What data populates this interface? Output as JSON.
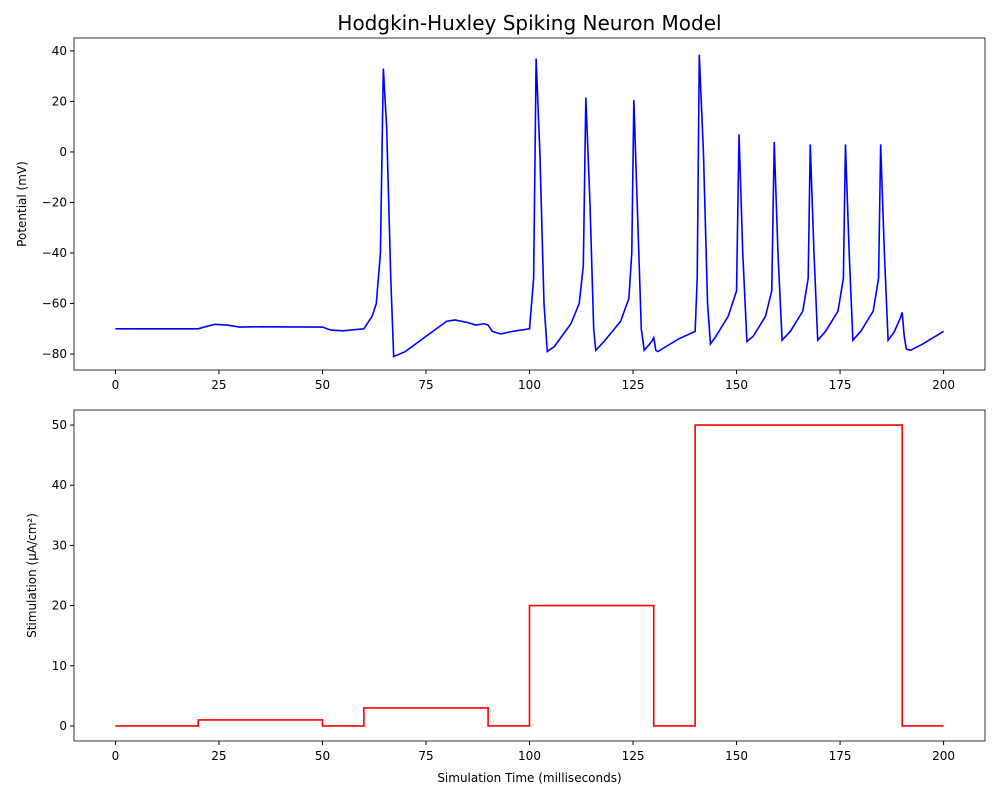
{
  "chart_data": [
    {
      "type": "line",
      "title": "Hodgkin-Huxley Spiking Neuron Model",
      "ylabel": "Potential (mV)",
      "color": "#0000ff",
      "x": [
        0,
        20,
        21,
        24,
        27,
        30,
        35,
        50,
        52,
        55,
        58,
        60,
        62,
        63,
        64,
        64.7,
        65.5,
        66.5,
        67.2,
        70,
        75,
        80,
        82,
        85,
        87,
        89,
        90,
        91,
        93,
        96,
        100,
        101,
        101.6,
        102.5,
        103.5,
        104.3,
        106,
        110,
        112,
        113,
        113.6,
        114.6,
        115.5,
        116,
        118,
        122,
        124,
        124.7,
        125.2,
        126,
        127,
        127.7,
        128.5,
        129.5,
        130,
        130.5,
        131,
        133,
        136,
        140,
        140.5,
        141,
        142,
        143,
        143.7,
        145,
        148,
        150,
        150.6,
        151.5,
        152.5,
        154,
        157,
        158.5,
        159.1,
        160,
        161,
        163,
        166,
        167.3,
        167.8,
        168.7,
        169.6,
        171.5,
        174.5,
        175.8,
        176.3,
        177.2,
        178.1,
        180,
        183,
        184.3,
        184.8,
        185.7,
        186.6,
        188,
        189.5,
        190,
        190.5,
        191,
        192,
        195,
        200
      ],
      "values": [
        -70,
        -70,
        -69.5,
        -68.2,
        -68.5,
        -69.3,
        -69.2,
        -69.3,
        -70.5,
        -70.8,
        -70.3,
        -70,
        -65,
        -60,
        -40,
        33,
        10,
        -50,
        -81,
        -79,
        -73,
        -67,
        -66.5,
        -67.5,
        -68.5,
        -68,
        -68.5,
        -71,
        -72,
        -71,
        -70,
        -50,
        37,
        0,
        -60,
        -79,
        -77,
        -68,
        -60,
        -45,
        21.5,
        -20,
        -70,
        -78.5,
        -75,
        -67,
        -58,
        -40,
        20.5,
        -20,
        -70,
        -78.5,
        -77,
        -75,
        -73.5,
        -78.5,
        -79,
        -77,
        -74,
        -71,
        -50,
        38.5,
        0,
        -60,
        -76,
        -73,
        -65,
        -55,
        7,
        -40,
        -75,
        -73,
        -65,
        -55,
        4,
        -40,
        -74.5,
        -71,
        -63,
        -50,
        3,
        -40,
        -74.5,
        -71,
        -63,
        -50,
        3,
        -40,
        -74.5,
        -71,
        -63,
        -50,
        3,
        -40,
        -74.5,
        -71.5,
        -66,
        -63.5,
        -73,
        -78,
        -78.5,
        -76,
        -71
      ],
      "xlim": [
        -10,
        210
      ],
      "xticks": [
        0,
        25,
        50,
        75,
        100,
        125,
        150,
        175,
        200
      ],
      "ylim": [
        -86.3,
        45.1
      ],
      "yticks": [
        {
          "value": -80,
          "label": "−80"
        },
        {
          "value": -60,
          "label": "−60"
        },
        {
          "value": -40,
          "label": "−40"
        },
        {
          "value": -20,
          "label": "−20"
        },
        0,
        20,
        40
      ]
    },
    {
      "type": "line",
      "xlabel": "Simulation Time (milliseconds)",
      "ylabel": "Stimulation (µA/cm²)",
      "color": "#ff0000",
      "x": [
        0,
        20,
        20,
        50,
        50,
        60,
        60,
        90,
        90,
        100,
        100,
        130,
        130,
        140,
        140,
        190,
        190,
        200
      ],
      "values": [
        0,
        0,
        1,
        1,
        0,
        0,
        3,
        3,
        0,
        0,
        20,
        20,
        0,
        0,
        50,
        50,
        0,
        0
      ],
      "xlim": [
        -10,
        210
      ],
      "xticks": [
        0,
        25,
        50,
        75,
        100,
        125,
        150,
        175,
        200
      ],
      "ylim": [
        -2.5,
        52.5
      ],
      "yticks": [
        0,
        10,
        20,
        30,
        40,
        50
      ]
    }
  ]
}
